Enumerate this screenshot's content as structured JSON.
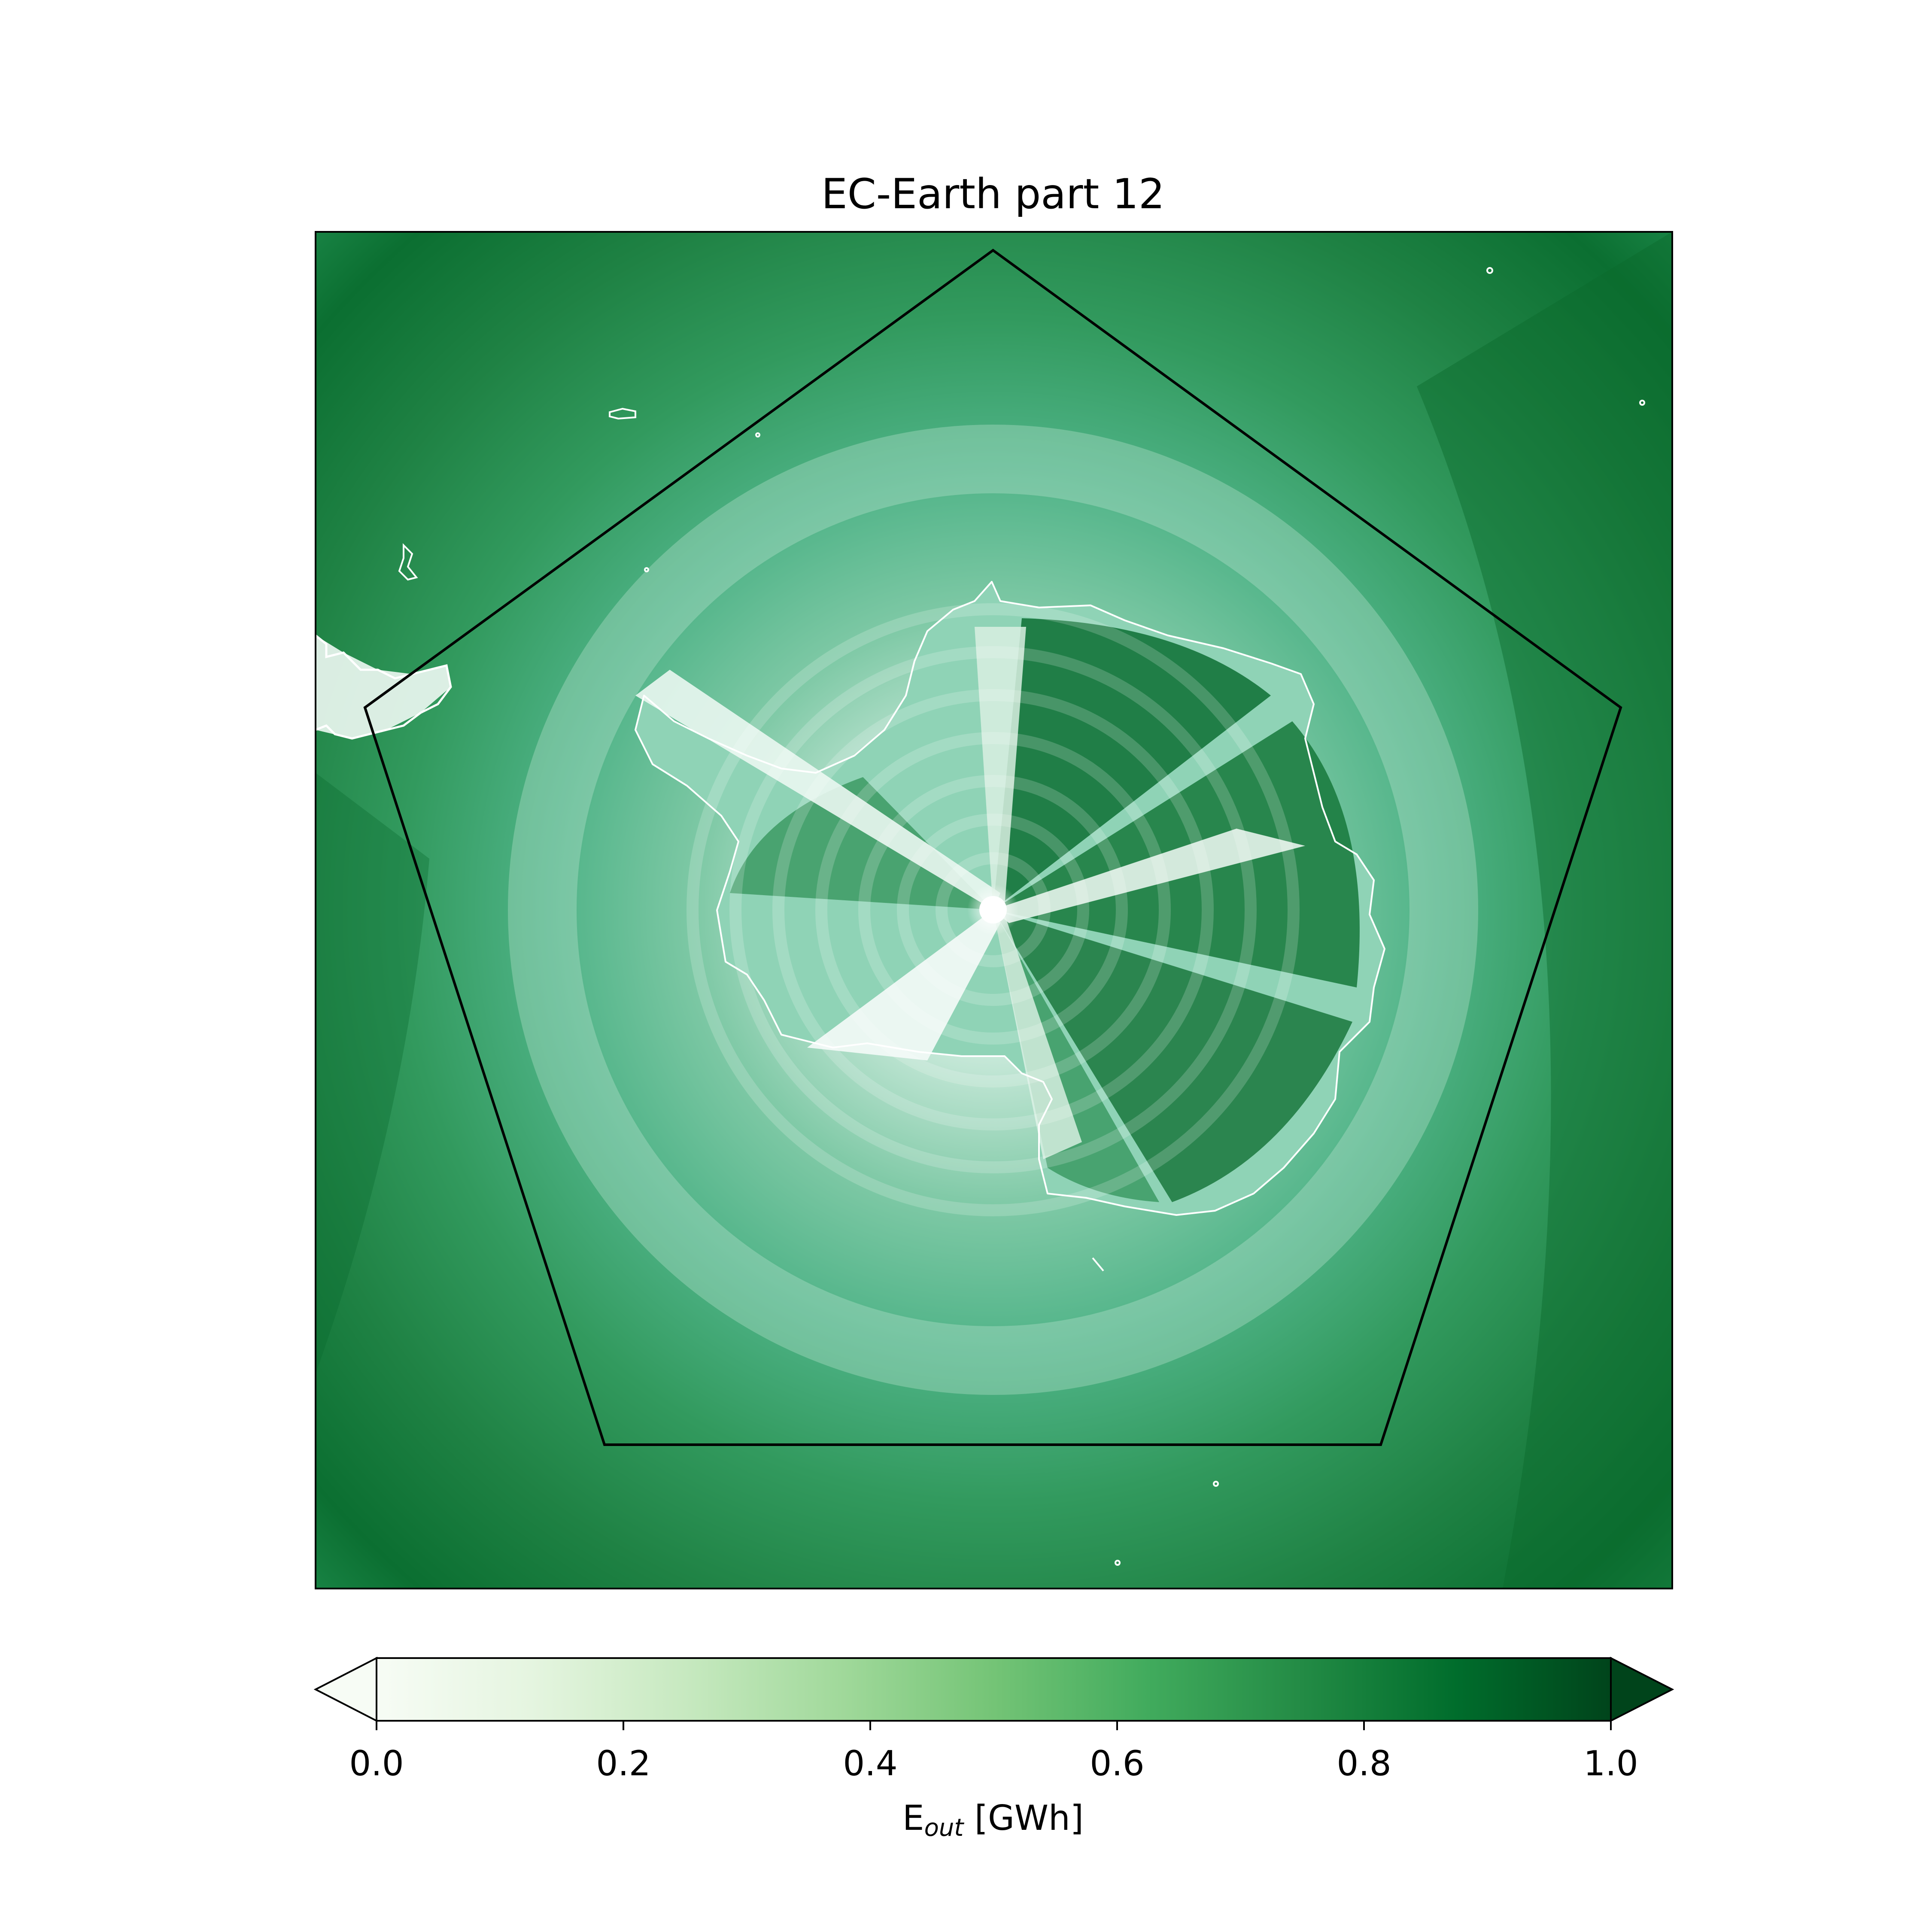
{
  "title": "EC-Earth part 12",
  "colorbar": {
    "label_main": "E",
    "label_sub": "out",
    "label_unit": " [GWh]",
    "ticks": [
      "0.0",
      "0.2",
      "0.4",
      "0.6",
      "0.8",
      "1.0"
    ],
    "vmin": 0.0,
    "vmax": 1.0,
    "colormap": "Greens",
    "colors": [
      "#f7fcf5",
      "#e5f5e0",
      "#c7e9c0",
      "#a1d99b",
      "#74c476",
      "#41ab5d",
      "#238b45",
      "#006d2c",
      "#00441b"
    ],
    "extend": "both"
  },
  "map": {
    "projection": "south-polar-stereographic",
    "region": "Antarctica",
    "coastline_color": "#ffffff",
    "overlay_shape": "pentagon",
    "overlay_color": "#000000"
  }
}
